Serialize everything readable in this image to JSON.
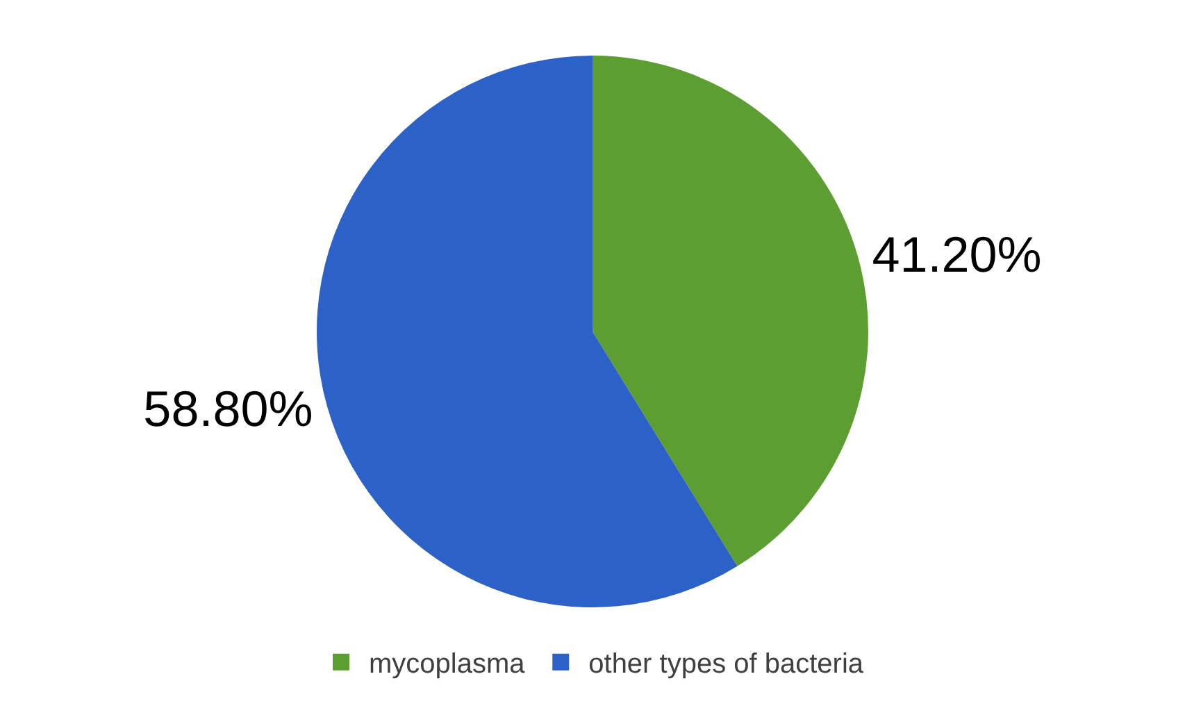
{
  "chart_data": {
    "type": "pie",
    "categories": [
      "mycoplasma",
      "other types of bacteria"
    ],
    "values": [
      41.2,
      58.8
    ],
    "colors": [
      "#5c9e32",
      "#2c62c8"
    ],
    "value_labels": [
      "41.20%",
      "58.80%"
    ],
    "legend": "bottom"
  }
}
